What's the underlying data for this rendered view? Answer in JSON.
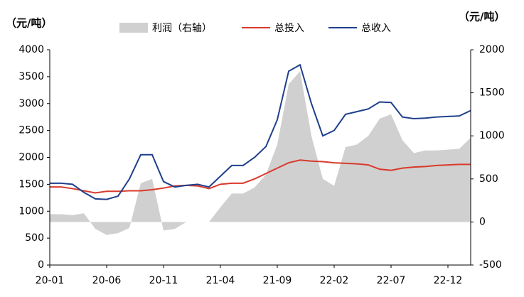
{
  "chart_data": {
    "type": "combo",
    "y_unit_left": "（元/吨）",
    "y_unit_right": "（元/吨）",
    "categories": [
      "20-01",
      null,
      null,
      null,
      null,
      "20-06",
      null,
      null,
      null,
      null,
      "20-11",
      null,
      null,
      null,
      null,
      "21-04",
      null,
      null,
      null,
      null,
      "21-09",
      null,
      null,
      null,
      null,
      "22-02",
      null,
      null,
      null,
      null,
      "22-07",
      null,
      null,
      null,
      null,
      "22-12",
      null,
      null
    ],
    "ylim": [
      0,
      4000
    ],
    "yticks": [
      0,
      500,
      1000,
      1500,
      2000,
      2500,
      3000,
      3500,
      4000
    ],
    "y2lim": [
      -500,
      2000
    ],
    "y2ticks": [
      -500,
      0,
      500,
      1000,
      1500,
      2000
    ],
    "series": [
      {
        "name": "利润（右轴）",
        "kind": "area",
        "axis": "y2",
        "color": "#d0d0d0",
        "values": [
          90,
          90,
          80,
          100,
          -80,
          -150,
          -130,
          -70,
          450,
          500,
          -100,
          -80,
          0,
          0,
          0,
          170,
          330,
          330,
          400,
          550,
          900,
          1600,
          1750,
          1000,
          500,
          420,
          870,
          900,
          1000,
          1200,
          1250,
          950,
          800,
          830,
          830,
          840,
          850,
          980
        ]
      },
      {
        "name": "总投入",
        "kind": "line",
        "color": "#d93a2b",
        "values": [
          1450,
          1450,
          1420,
          1380,
          1340,
          1370,
          1370,
          1380,
          1380,
          1400,
          1430,
          1470,
          1480,
          1470,
          1420,
          1500,
          1520,
          1520,
          1600,
          1700,
          1800,
          1900,
          1950,
          1930,
          1920,
          1900,
          1890,
          1880,
          1860,
          1780,
          1760,
          1800,
          1820,
          1830,
          1850,
          1860,
          1870,
          1870
        ]
      },
      {
        "name": "总收入",
        "kind": "line",
        "color": "#1f3f8c",
        "values": [
          1520,
          1520,
          1500,
          1350,
          1230,
          1220,
          1280,
          1600,
          2050,
          2050,
          1550,
          1450,
          1480,
          1500,
          1450,
          1650,
          1850,
          1850,
          2000,
          2200,
          2700,
          3600,
          3720,
          3000,
          2400,
          2500,
          2800,
          2850,
          2900,
          3030,
          3020,
          2750,
          2720,
          2730,
          2750,
          2760,
          2770,
          2870
        ]
      }
    ]
  }
}
